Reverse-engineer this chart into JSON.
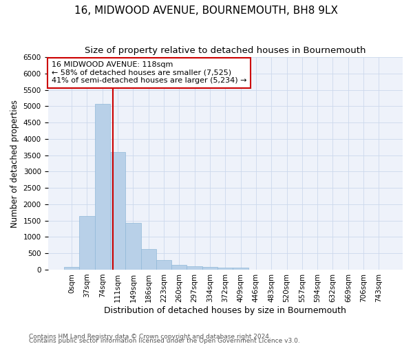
{
  "title": "16, MIDWOOD AVENUE, BOURNEMOUTH, BH8 9LX",
  "subtitle": "Size of property relative to detached houses in Bournemouth",
  "xlabel": "Distribution of detached houses by size in Bournemouth",
  "ylabel": "Number of detached properties",
  "footer_line1": "Contains HM Land Registry data © Crown copyright and database right 2024.",
  "footer_line2": "Contains public sector information licensed under the Open Government Licence v3.0.",
  "bin_labels": [
    "0sqm",
    "37sqm",
    "74sqm",
    "111sqm",
    "149sqm",
    "186sqm",
    "223sqm",
    "260sqm",
    "297sqm",
    "334sqm",
    "372sqm",
    "409sqm",
    "446sqm",
    "483sqm",
    "520sqm",
    "557sqm",
    "594sqm",
    "632sqm",
    "669sqm",
    "706sqm",
    "743sqm"
  ],
  "bar_values": [
    75,
    1650,
    5060,
    3590,
    1420,
    620,
    290,
    150,
    110,
    75,
    55,
    55,
    0,
    0,
    0,
    0,
    0,
    0,
    0,
    0,
    0
  ],
  "bar_color": "#b8d0e8",
  "bar_edge_color": "#90b8d8",
  "grid_color": "#ccd8ec",
  "background_color": "#eef2fa",
  "annotation_line1": "16 MIDWOOD AVENUE: 118sqm",
  "annotation_line2": "← 58% of detached houses are smaller (7,525)",
  "annotation_line3": "41% of semi-detached houses are larger (5,234) →",
  "annotation_box_color": "#ffffff",
  "annotation_box_edge": "#cc0000",
  "vline_color": "#cc0000",
  "ylim": [
    0,
    6500
  ],
  "yticks": [
    0,
    500,
    1000,
    1500,
    2000,
    2500,
    3000,
    3500,
    4000,
    4500,
    5000,
    5500,
    6000,
    6500
  ],
  "title_fontsize": 11,
  "subtitle_fontsize": 9.5,
  "ylabel_fontsize": 8.5,
  "xlabel_fontsize": 9,
  "tick_fontsize": 7.5,
  "footer_fontsize": 6.5,
  "annot_fontsize": 8
}
